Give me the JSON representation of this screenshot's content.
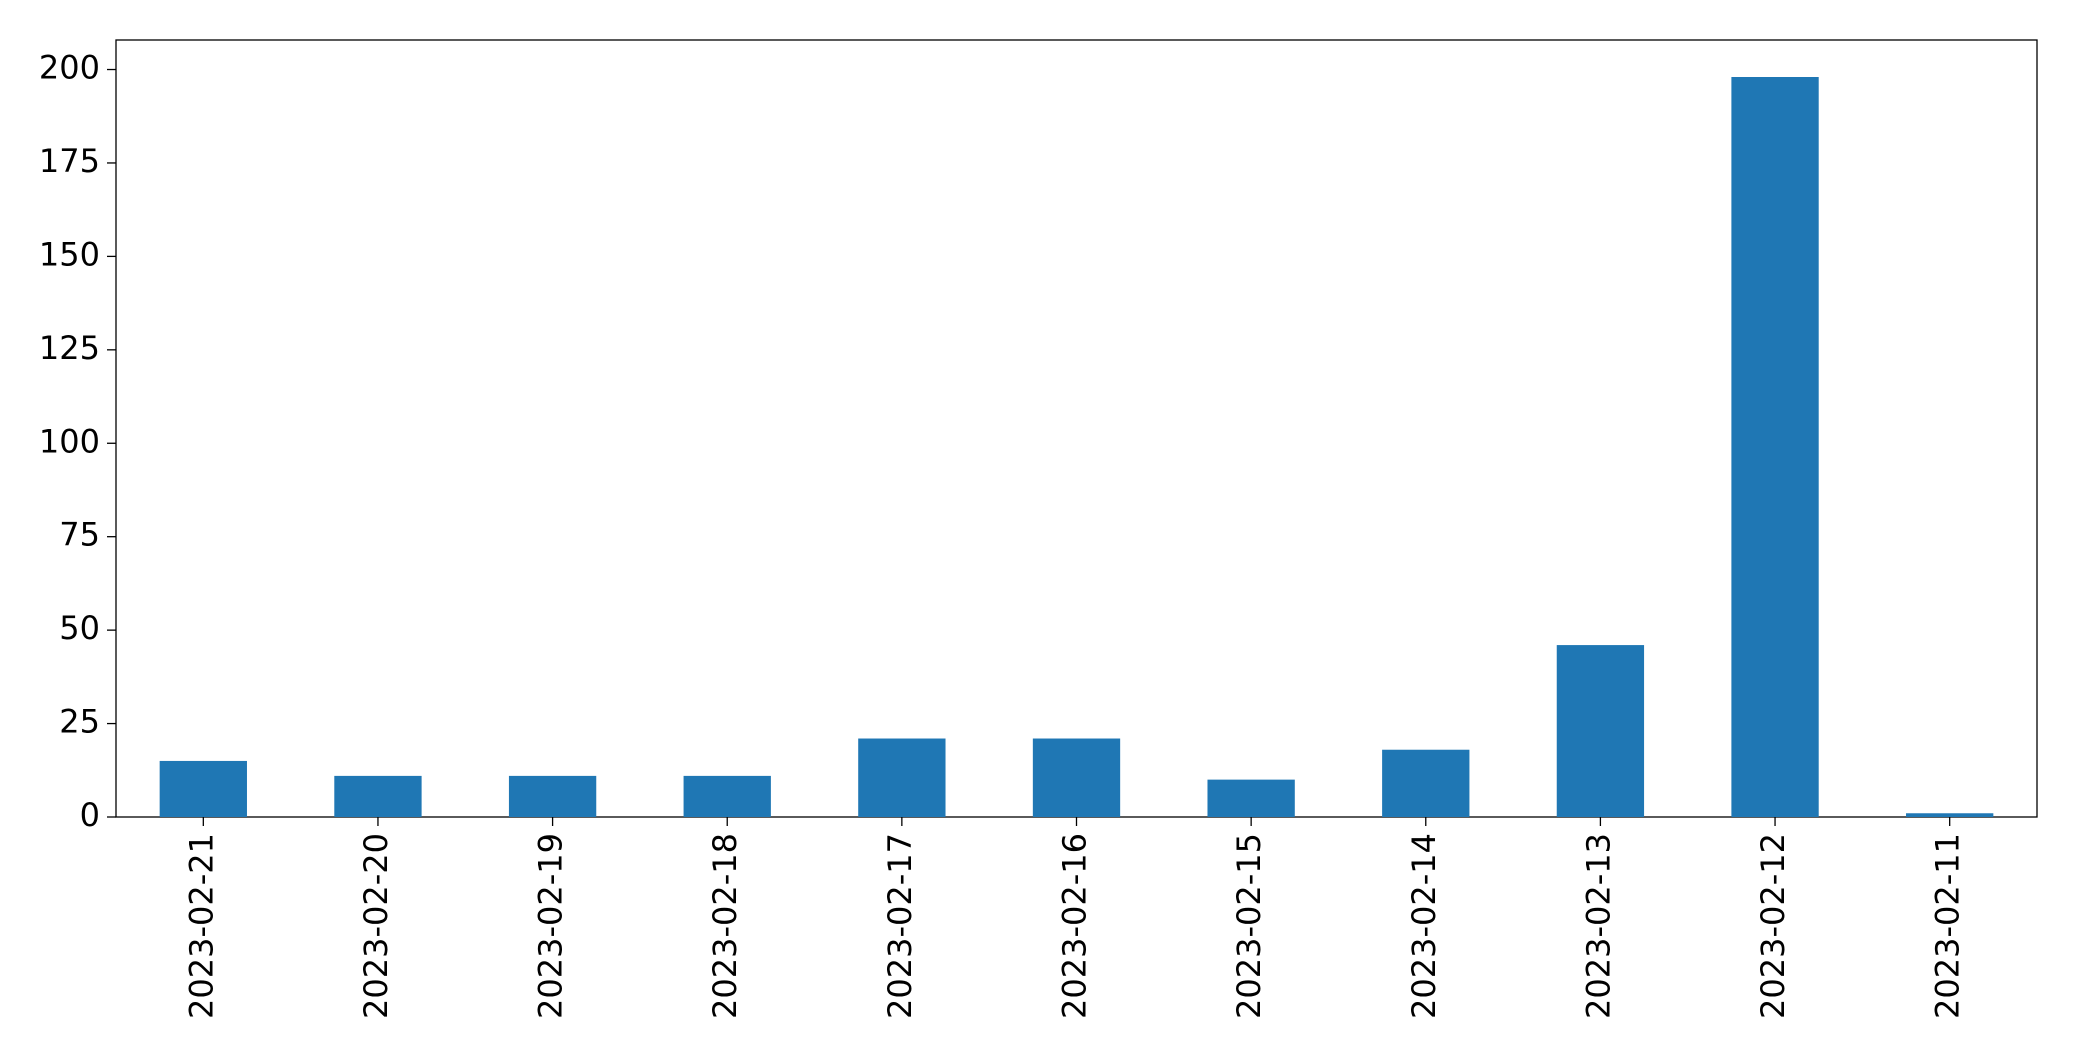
{
  "chart_data": {
    "type": "bar",
    "categories": [
      "2023-02-21",
      "2023-02-20",
      "2023-02-19",
      "2023-02-18",
      "2023-02-17",
      "2023-02-16",
      "2023-02-15",
      "2023-02-14",
      "2023-02-13",
      "2023-02-12",
      "2023-02-11"
    ],
    "values": [
      15,
      11,
      11,
      11,
      21,
      21,
      10,
      18,
      46,
      198,
      1
    ],
    "color": "#1f77b4",
    "ylim": [
      0,
      207.9
    ],
    "yticks": [
      0,
      25,
      50,
      75,
      100,
      125,
      150,
      175,
      200
    ],
    "grid": false
  }
}
